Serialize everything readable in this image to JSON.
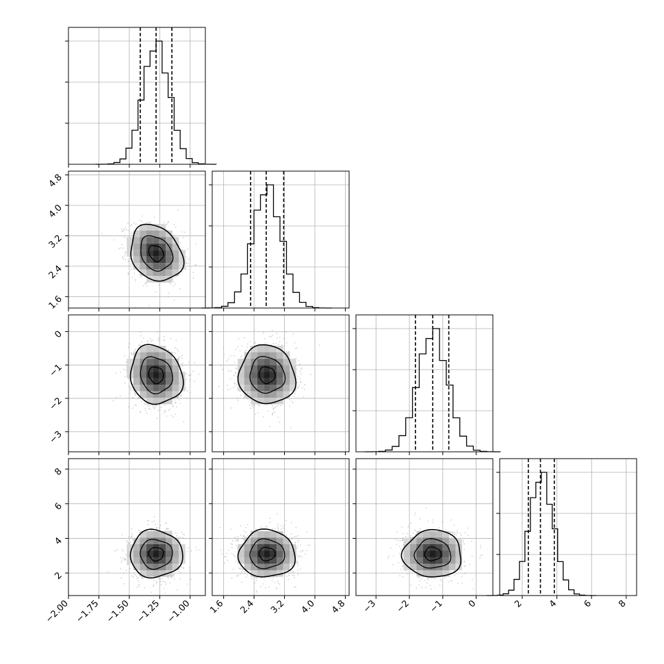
{
  "chart_data": {
    "type": "corner",
    "grid": true,
    "parameters": [
      {
        "range": [
          -2.0,
          -0.875
        ],
        "ticks": [
          -2.0,
          -1.75,
          -1.5,
          -1.25,
          -1.0
        ],
        "tick_labels": [
          "−2.00",
          "−1.75",
          "−1.50",
          "−1.25",
          "−1.00"
        ],
        "mean": -1.28,
        "std": 0.11,
        "quantiles": [
          -1.41,
          -1.28,
          -1.15
        ]
      },
      {
        "range": [
          1.3,
          4.9
        ],
        "ticks": [
          1.6,
          2.4,
          3.2,
          4.0,
          4.8
        ],
        "tick_labels": [
          "1.6",
          "2.4",
          "3.2",
          "4.0",
          "4.8"
        ],
        "mean": 2.74,
        "std": 0.38,
        "quantiles": [
          2.31,
          2.72,
          3.18
        ]
      },
      {
        "range": [
          -3.6,
          0.5
        ],
        "ticks": [
          -3,
          -2,
          -1,
          0
        ],
        "tick_labels": [
          "−3",
          "−2",
          "−1",
          "0"
        ],
        "mean": -1.3,
        "std": 0.45,
        "quantiles": [
          -1.82,
          -1.3,
          -0.82
        ]
      },
      {
        "range": [
          0.7,
          8.6
        ],
        "ticks": [
          2,
          4,
          6,
          8
        ],
        "tick_labels": [
          "2",
          "4",
          "6",
          "8"
        ],
        "mean": 3.1,
        "std": 0.7,
        "quantiles": [
          2.35,
          3.05,
          3.85
        ]
      }
    ],
    "correlations": {
      "1-0": -0.22,
      "2-0": -0.12,
      "2-1": -0.05,
      "3-0": 0.0,
      "3-1": 0.0,
      "3-2": 0.0
    },
    "diagonal": "histogram with dashed lines at 16/50/84 percent quantiles",
    "off_diagonal": "scatter points with density shading and contours"
  }
}
